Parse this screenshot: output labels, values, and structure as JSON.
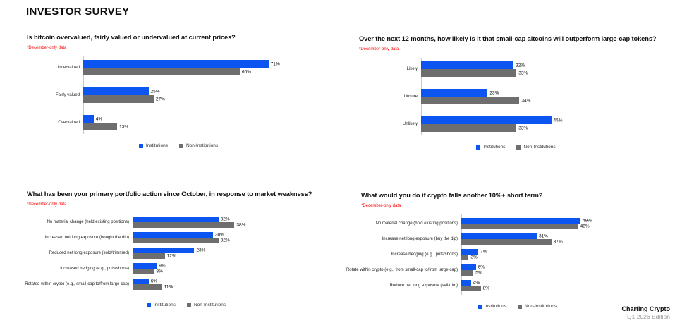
{
  "page_title": "INVESTOR SURVEY",
  "colors": {
    "institutions": "#0d55f0",
    "non_institutions": "#6e6e6e",
    "note_red": "#ff0000",
    "axis_gray": "#c9c9c9"
  },
  "legend": [
    "Institutions",
    "Non-Institutions"
  ],
  "footer": {
    "brand": "Charting Crypto",
    "edition": "Q1 2026 Edition"
  },
  "chart_data": [
    {
      "type": "bar",
      "orientation": "horizontal",
      "title": "Is bitcoin overvalued, fairly valued or undervalued at current prices?",
      "note": "*December-only data",
      "value_suffix": "%",
      "categories": [
        "Undervalued",
        "Fairly valued",
        "Overvalued"
      ],
      "series": [
        {
          "name": "Institutions",
          "values": [
            71,
            25,
            4
          ]
        },
        {
          "name": "Non-Institutions",
          "values": [
            60,
            27,
            13
          ]
        }
      ],
      "legend_position": "bottom"
    },
    {
      "type": "bar",
      "orientation": "horizontal",
      "title": "Over the next 12 months, how likely is it that small-cap altcoins will outperform large-cap tokens?",
      "note": "*December-only data",
      "value_suffix": "%",
      "categories": [
        "Likely",
        "Unsure",
        "Unlikely"
      ],
      "series": [
        {
          "name": "Institutions",
          "values": [
            32,
            23,
            45
          ]
        },
        {
          "name": "Non-Institutions",
          "values": [
            33,
            34,
            33
          ]
        }
      ],
      "legend_position": "bottom"
    },
    {
      "type": "bar",
      "orientation": "horizontal",
      "title": "What has been your primary portfolio action since October, in response to market weakness?",
      "note": "*December-only data",
      "value_suffix": "%",
      "categories": [
        "No material change (held existing positions)",
        "Increased net long exposure (bought the dip)",
        "Reduced net long exposure (sold/trimmed)",
        "Increased hedging (e.g., puts/shorts)",
        "Rotated within crypto (e.g., small-cap to/from large-cap)"
      ],
      "series": [
        {
          "name": "Institutions",
          "values": [
            32,
            30,
            23,
            9,
            6
          ]
        },
        {
          "name": "Non-Institutions",
          "values": [
            38,
            32,
            12,
            8,
            11
          ]
        }
      ],
      "legend_position": "bottom"
    },
    {
      "type": "bar",
      "orientation": "horizontal",
      "title": "What would you do if crypto falls another 10%+ short term?",
      "note": "*December-only data",
      "value_suffix": "%",
      "categories": [
        "No material change (hold existing positions)",
        "Increase net long exposure (buy the dip)",
        "Increase hedging (e.g., puts/shorts)",
        "Rotate within crypto (e.g., from small-cap to/from large-cap)",
        "Reduce net long exposure (sell/trim)"
      ],
      "series": [
        {
          "name": "Institutions",
          "values": [
            49,
            31,
            7,
            6,
            4
          ]
        },
        {
          "name": "Non-Institutions",
          "values": [
            48,
            37,
            3,
            5,
            8
          ]
        }
      ],
      "legend_position": "bottom"
    }
  ]
}
